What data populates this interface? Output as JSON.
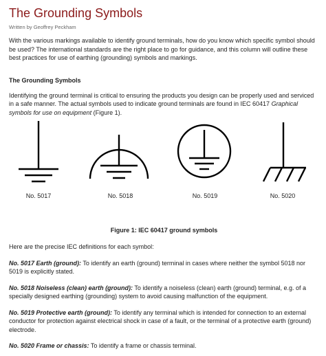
{
  "article": {
    "title": "The Grounding Symbols",
    "byline": "Written by Geoffrey Peckham",
    "intro": "With the various markings available to identify ground terminals, how do you know which specific symbol should be used? The international standards are the right place to go for guidance, and this column will outline these best practices for use of earthing (grounding) symbols and markings.",
    "section_heading": "The Grounding Symbols",
    "para2_main": "Identifying the ground terminal is critical to ensuring the products you design can be properly used and serviced in a safe manner. The actual symbols used to indicate ground terminals are found in IEC 60417 ",
    "para2_italic": "Graphical symbols for use on equipment",
    "para2_tail": " (Figure 1).",
    "figure": {
      "symbols": [
        {
          "label": "No. 5017",
          "icon": "earth-ground-icon"
        },
        {
          "label": "No. 5018",
          "icon": "noiseless-earth-icon"
        },
        {
          "label": "No. 5019",
          "icon": "protective-earth-icon"
        },
        {
          "label": "No. 5020",
          "icon": "chassis-ground-icon"
        }
      ],
      "caption": "Figure 1: IEC 60417 ground symbols"
    },
    "para3": "Here are the precise IEC definitions for each symbol:",
    "definitions": [
      {
        "term": "No. 5017 Earth (ground):",
        "text": " To identify an earth (ground) terminal in cases where neither the symbol 5018 nor 5019 is explicitly stated."
      },
      {
        "term": "No. 5018 Noiseless (clean) earth (ground):",
        "text": " To identify a noiseless (clean) earth (ground) terminal, e.g. of a specially designed earthing (grounding) system to avoid causing malfunction of the equipment."
      },
      {
        "term": "No. 5019 Protective earth (ground):",
        "text": " To identify any terminal which is intended for connection to an external conductor for protection against electrical shock in case of a fault, or the terminal of a protective earth (ground) electrode."
      },
      {
        "term": "No. 5020 Frame or chassis:",
        "text": " To identify a frame or chassis terminal."
      }
    ],
    "colors": {
      "title": "#8b1a1a",
      "text": "#222222",
      "symbol_stroke": "#000000"
    }
  }
}
